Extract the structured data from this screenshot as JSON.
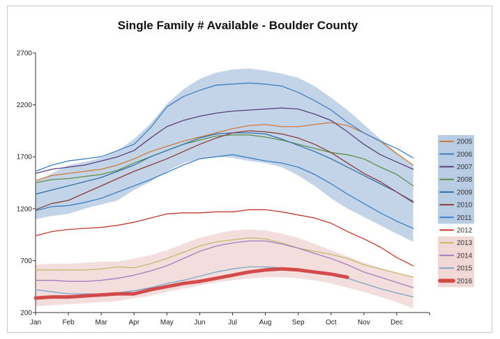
{
  "chart_data": {
    "type": "line",
    "title": "Single Family # Available - Boulder County",
    "xlabel": "",
    "ylabel": "",
    "ylim": [
      200,
      2700
    ],
    "yticks": [
      "200",
      "700",
      "1200",
      "1700",
      "2200",
      "2700"
    ],
    "months": [
      "Jan",
      "Feb",
      "Mar",
      "Apr",
      "May",
      "Jun",
      "Jul",
      "Aug",
      "Sep",
      "Oct",
      "Nov",
      "Dec"
    ],
    "x": [
      1,
      1.5,
      2,
      2.5,
      3,
      3.5,
      4,
      4.5,
      5,
      5.5,
      6,
      6.5,
      7,
      7.5,
      8,
      8.5,
      9,
      9.5,
      10,
      10.5,
      11,
      11.5,
      12,
      12.5
    ],
    "bands": [
      {
        "color": "#b8cce4",
        "upper": [
          1460,
          1540,
          1620,
          1650,
          1690,
          1760,
          1870,
          2020,
          2210,
          2350,
          2450,
          2510,
          2540,
          2550,
          2530,
          2500,
          2460,
          2380,
          2270,
          2150,
          2010,
          1870,
          1740,
          1620
        ],
        "lower": [
          1100,
          1130,
          1150,
          1200,
          1240,
          1280,
          1380,
          1460,
          1560,
          1640,
          1680,
          1700,
          1690,
          1660,
          1640,
          1600,
          1520,
          1420,
          1300,
          1200,
          1120,
          1040,
          960,
          880
        ]
      },
      {
        "color": "#f2d7d7",
        "upper": [
          660,
          670,
          670,
          680,
          690,
          690,
          720,
          750,
          800,
          860,
          920,
          960,
          990,
          1000,
          990,
          960,
          920,
          860,
          800,
          740,
          680,
          630,
          580,
          550
        ],
        "lower": [
          260,
          270,
          280,
          290,
          300,
          310,
          340,
          360,
          400,
          430,
          460,
          490,
          510,
          530,
          540,
          540,
          530,
          510,
          480,
          440,
          400,
          350,
          300,
          240
        ]
      }
    ],
    "series": [
      {
        "name": "2005",
        "color": "#d2793a",
        "width": 1.3,
        "values": [
          1470,
          1520,
          1540,
          1560,
          1580,
          1620,
          1680,
          1750,
          1800,
          1850,
          1890,
          1930,
          1970,
          2000,
          2010,
          1990,
          1990,
          2010,
          2030,
          2000,
          1930,
          1850,
          1730,
          1620
        ]
      },
      {
        "name": "2006",
        "color": "#3f7fc0",
        "width": 1.3,
        "values": [
          1560,
          1620,
          1660,
          1680,
          1700,
          1760,
          1820,
          1980,
          2180,
          2280,
          2340,
          2390,
          2400,
          2410,
          2400,
          2380,
          2320,
          2240,
          2150,
          2030,
          1930,
          1850,
          1780,
          1690
        ]
      },
      {
        "name": "2007",
        "color": "#5a3e7a",
        "width": 1.3,
        "values": [
          1540,
          1580,
          1600,
          1620,
          1660,
          1700,
          1760,
          1880,
          1990,
          2050,
          2090,
          2120,
          2140,
          2150,
          2160,
          2170,
          2160,
          2110,
          2050,
          1940,
          1820,
          1720,
          1650,
          1580
        ]
      },
      {
        "name": "2008",
        "color": "#5e8f47",
        "width": 1.3,
        "values": [
          1450,
          1480,
          1490,
          1510,
          1530,
          1570,
          1640,
          1700,
          1760,
          1820,
          1860,
          1900,
          1910,
          1910,
          1890,
          1860,
          1820,
          1780,
          1740,
          1720,
          1680,
          1600,
          1530,
          1420
        ]
      },
      {
        "name": "2009",
        "color": "#2f6fa8",
        "width": 1.3,
        "values": [
          1340,
          1380,
          1420,
          1460,
          1500,
          1560,
          1620,
          1700,
          1760,
          1820,
          1880,
          1920,
          1930,
          1930,
          1920,
          1870,
          1810,
          1750,
          1680,
          1600,
          1520,
          1440,
          1360,
          1270
        ]
      },
      {
        "name": "2010",
        "color": "#8b3a3a",
        "width": 1.3,
        "values": [
          1190,
          1250,
          1280,
          1350,
          1420,
          1490,
          1560,
          1620,
          1680,
          1750,
          1820,
          1880,
          1930,
          1950,
          1940,
          1920,
          1880,
          1820,
          1740,
          1640,
          1540,
          1460,
          1360,
          1260
        ]
      },
      {
        "name": "2011",
        "color": "#3d7fc4",
        "width": 1.3,
        "values": [
          1180,
          1220,
          1230,
          1260,
          1300,
          1360,
          1420,
          1480,
          1550,
          1620,
          1680,
          1700,
          1720,
          1690,
          1660,
          1640,
          1600,
          1530,
          1440,
          1340,
          1250,
          1160,
          1080,
          1010
        ]
      },
      {
        "name": "2012",
        "color": "#c0392b",
        "width": 1.3,
        "values": [
          940,
          980,
          1000,
          1010,
          1020,
          1040,
          1070,
          1110,
          1150,
          1160,
          1160,
          1170,
          1170,
          1190,
          1190,
          1170,
          1140,
          1110,
          1060,
          980,
          910,
          830,
          730,
          650
        ]
      },
      {
        "name": "2013",
        "color": "#c4b96a",
        "width": 1.3,
        "values": [
          610,
          610,
          610,
          610,
          620,
          640,
          630,
          670,
          720,
          780,
          840,
          880,
          900,
          920,
          910,
          870,
          820,
          790,
          760,
          720,
          660,
          620,
          580,
          540
        ]
      },
      {
        "name": "2014",
        "color": "#a67bc0",
        "width": 1.3,
        "values": [
          510,
          510,
          500,
          500,
          510,
          530,
          560,
          600,
          650,
          720,
          790,
          840,
          870,
          890,
          890,
          860,
          820,
          770,
          720,
          660,
          590,
          540,
          490,
          440
        ]
      },
      {
        "name": "2015",
        "color": "#77a8c8",
        "width": 1.3,
        "values": [
          420,
          400,
          380,
          380,
          380,
          390,
          410,
          440,
          480,
          510,
          550,
          590,
          620,
          640,
          640,
          630,
          610,
          590,
          570,
          530,
          480,
          430,
          390,
          350
        ]
      },
      {
        "name": "2016",
        "color": "#d24a4a",
        "width": 5,
        "values": [
          340,
          350,
          350,
          360,
          370,
          380,
          380,
          420,
          450,
          480,
          500,
          530,
          560,
          590,
          610,
          620,
          610,
          590,
          570,
          540,
          null,
          null,
          null,
          null
        ]
      }
    ],
    "legend_position": "right",
    "grid": false
  }
}
